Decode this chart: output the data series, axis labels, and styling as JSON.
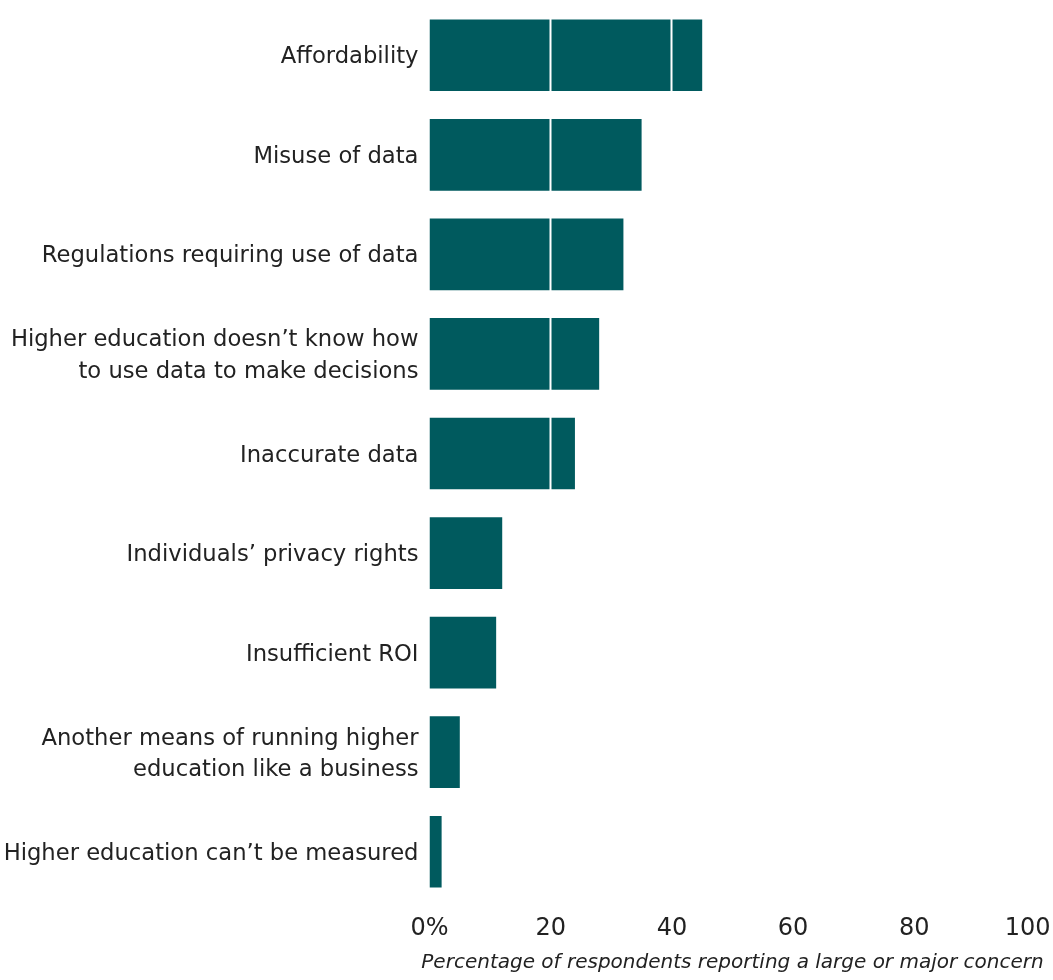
{
  "chart_data": {
    "type": "bar",
    "orientation": "horizontal",
    "xlabel": "Percentage of respondents reporting a large or major concern",
    "categories": [
      "Affordability",
      "Misuse of data",
      "Regulations requiring use of data",
      "Higher education doesn’t know how to use data to make decisions",
      "Inaccurate data",
      "Individuals’ privacy rights",
      "Insufficient ROI",
      "Another means of running higher education like a business",
      "Higher education can’t be measured"
    ],
    "values": [
      45,
      35,
      32,
      28,
      24,
      12,
      11,
      5,
      2
    ],
    "color": "#005a5e",
    "xlim": [
      0,
      100
    ],
    "xticks": [
      {
        "value": 0,
        "label": "0%"
      },
      20,
      40,
      60,
      80,
      100
    ],
    "grid": "x"
  }
}
